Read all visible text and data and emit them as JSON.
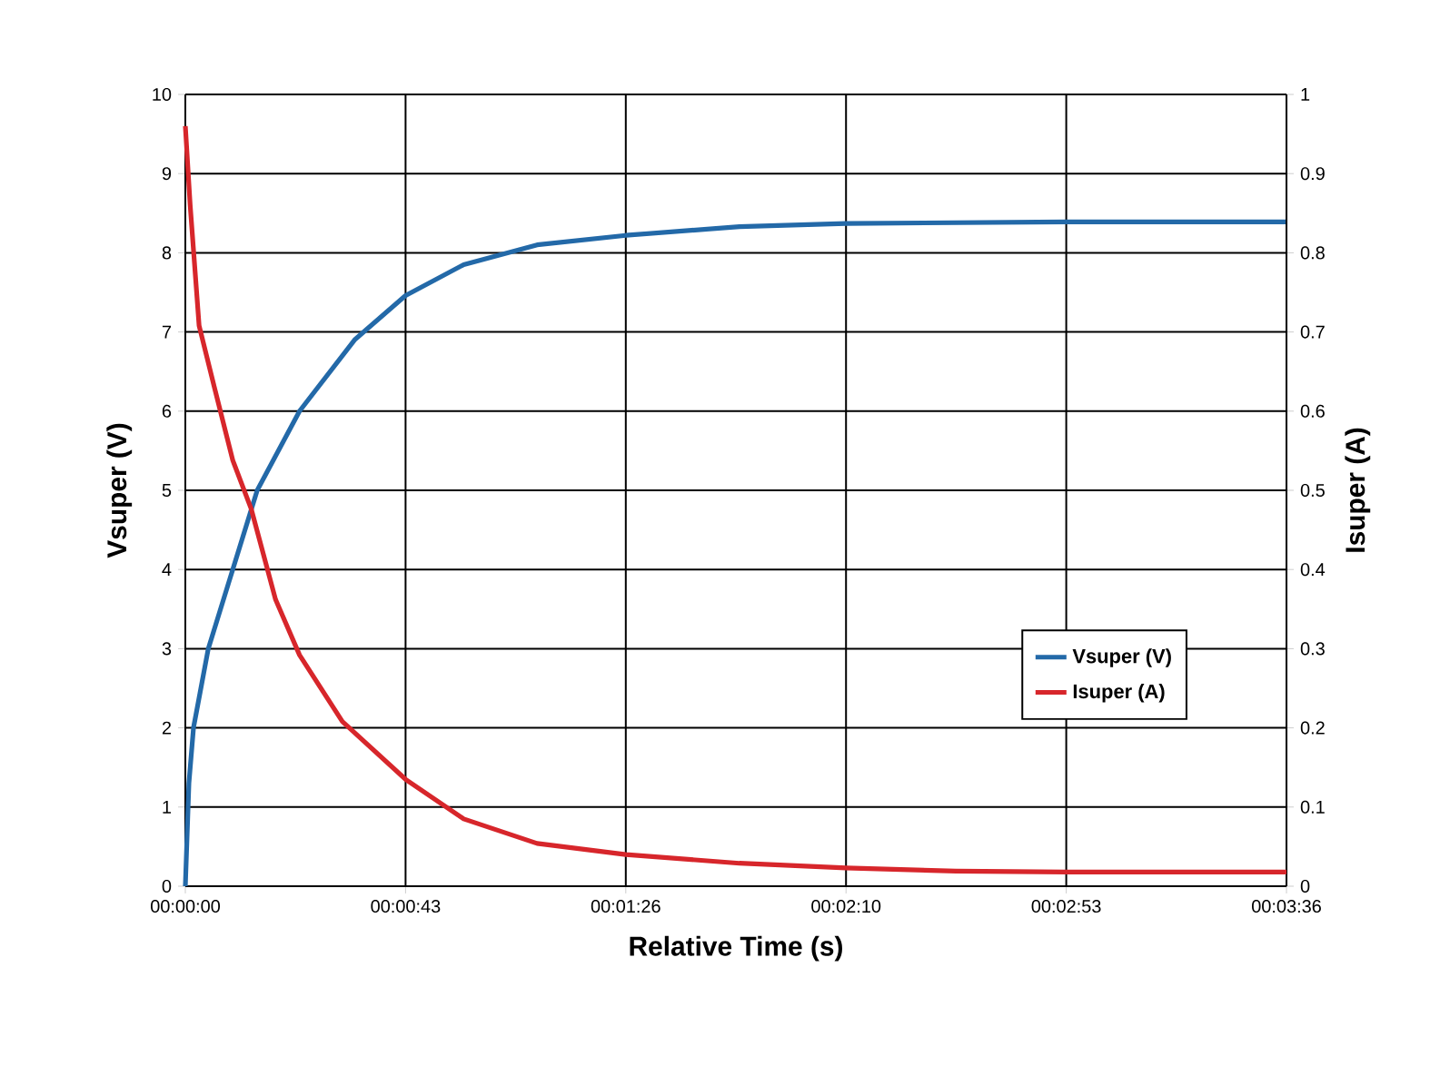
{
  "chart_data": {
    "type": "line",
    "xlabel": "Relative Time (s)",
    "ylabel": "Vsuper (V)",
    "y2label": "Isuper (A)",
    "xlim": [
      0,
      216
    ],
    "xticks": [
      {
        "value": 0,
        "label": "00:00:00"
      },
      {
        "value": 43.2,
        "label": "00:00:43"
      },
      {
        "value": 86.4,
        "label": "00:01:26"
      },
      {
        "value": 129.6,
        "label": "00:02:10"
      },
      {
        "value": 172.8,
        "label": "00:02:53"
      },
      {
        "value": 216,
        "label": "00:03:36"
      }
    ],
    "ylim": [
      0,
      10
    ],
    "yticks": [
      0,
      1,
      2,
      3,
      4,
      5,
      6,
      7,
      8,
      9,
      10
    ],
    "y2lim": [
      0,
      1
    ],
    "y2ticks": [
      0,
      0.1,
      0.2,
      0.3,
      0.4,
      0.5,
      0.6,
      0.7,
      0.8,
      0.9,
      1
    ],
    "grid": true,
    "legend": "right",
    "marker": "none",
    "line_style": "solid",
    "series": [
      {
        "name": "Vsuper (V)",
        "color": "#2369a8",
        "x": [
          0,
          0.7,
          1.6,
          4.5,
          9.3,
          14.1,
          22.4,
          33.2,
          43.2,
          54.6,
          69.0,
          86.4,
          108.7,
          129.6,
          172.8,
          216
        ],
        "values": [
          0,
          1.3,
          2.0,
          3.0,
          4.0,
          5.0,
          6.0,
          6.9,
          7.46,
          7.85,
          8.1,
          8.22,
          8.33,
          8.37,
          8.39,
          8.39
        ]
      },
      {
        "name": "Isuper (A)",
        "color": "#d7262b",
        "axis": "y2",
        "x": [
          0,
          0.95,
          2.7,
          5.7,
          9.3,
          12.9,
          17.7,
          22.4,
          30.8,
          43.2,
          54.6,
          69.0,
          86.4,
          108.7,
          129.6,
          151.2,
          172.8,
          216
        ],
        "values": [
          0.96,
          0.86,
          0.708,
          0.63,
          0.538,
          0.477,
          0.362,
          0.292,
          0.208,
          0.135,
          0.085,
          0.054,
          0.04,
          0.029,
          0.023,
          0.019,
          0.018,
          0.018
        ]
      }
    ]
  }
}
